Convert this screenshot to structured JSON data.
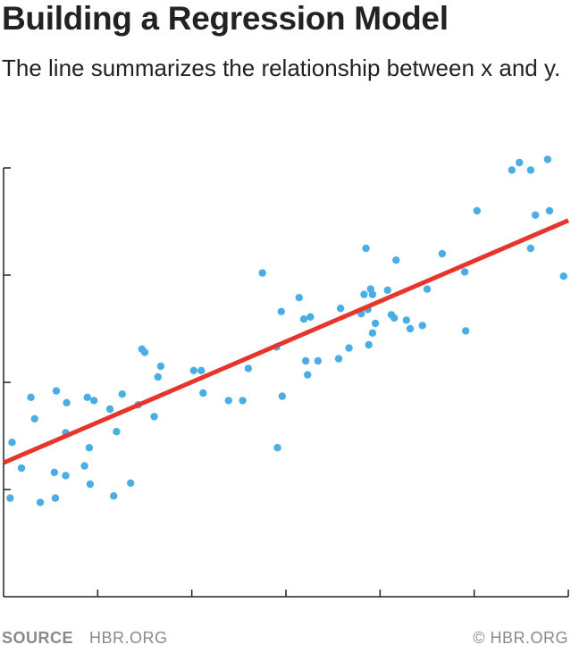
{
  "header": {
    "title": "Building a Regression Model",
    "subtitle": "The line summarizes the relationship between x and y."
  },
  "footer": {
    "source_label": "SOURCE",
    "source_value": "HBR.ORG",
    "copyright": "© HBR.ORG"
  },
  "colors": {
    "point": "#4aaee4",
    "line": "#e8352c",
    "axis": "#222222"
  },
  "chart_data": {
    "type": "scatter",
    "title": "Building a Regression Model",
    "subtitle": "The line summarizes the relationship between x and y.",
    "xlabel": "",
    "ylabel": "",
    "xlim": [
      0,
      6
    ],
    "ylim": [
      0,
      4
    ],
    "x_ticks": [
      1,
      2,
      3,
      4,
      5,
      6
    ],
    "y_ticks": [
      1,
      2,
      3,
      4
    ],
    "grid": false,
    "legend": "none",
    "points": [
      [
        0.07,
        0.92
      ],
      [
        0.09,
        1.44
      ],
      [
        0.19,
        1.2
      ],
      [
        0.29,
        1.86
      ],
      [
        0.33,
        1.66
      ],
      [
        0.39,
        0.88
      ],
      [
        0.54,
        1.16
      ],
      [
        0.55,
        0.92
      ],
      [
        0.56,
        1.92
      ],
      [
        0.66,
        1.53
      ],
      [
        0.66,
        1.13
      ],
      [
        0.67,
        1.81
      ],
      [
        0.86,
        1.22
      ],
      [
        0.89,
        1.86
      ],
      [
        0.91,
        1.39
      ],
      [
        0.92,
        1.05
      ],
      [
        0.96,
        1.83
      ],
      [
        1.13,
        1.75
      ],
      [
        1.17,
        0.94
      ],
      [
        1.2,
        1.54
      ],
      [
        1.26,
        1.89
      ],
      [
        1.35,
        1.06
      ],
      [
        1.43,
        1.79
      ],
      [
        1.47,
        2.31
      ],
      [
        1.5,
        2.28
      ],
      [
        1.6,
        1.68
      ],
      [
        1.64,
        2.05
      ],
      [
        1.67,
        2.15
      ],
      [
        2.02,
        2.11
      ],
      [
        2.1,
        2.11
      ],
      [
        2.12,
        1.9
      ],
      [
        2.39,
        1.83
      ],
      [
        2.54,
        1.83
      ],
      [
        2.6,
        2.13
      ],
      [
        2.75,
        3.02
      ],
      [
        2.9,
        2.33
      ],
      [
        2.91,
        1.39
      ],
      [
        2.95,
        2.66
      ],
      [
        2.96,
        1.87
      ],
      [
        3.14,
        2.79
      ],
      [
        3.19,
        2.59
      ],
      [
        3.21,
        2.2
      ],
      [
        3.23,
        2.07
      ],
      [
        3.26,
        2.61
      ],
      [
        3.34,
        2.2
      ],
      [
        3.56,
        2.22
      ],
      [
        3.58,
        2.69
      ],
      [
        3.67,
        2.32
      ],
      [
        3.8,
        2.64
      ],
      [
        3.83,
        2.82
      ],
      [
        3.85,
        3.25
      ],
      [
        3.87,
        2.68
      ],
      [
        3.88,
        2.35
      ],
      [
        3.9,
        2.87
      ],
      [
        3.92,
        2.82
      ],
      [
        3.92,
        2.46
      ],
      [
        3.95,
        2.55
      ],
      [
        4.08,
        2.86
      ],
      [
        4.12,
        2.63
      ],
      [
        4.15,
        2.6
      ],
      [
        4.17,
        3.14
      ],
      [
        4.28,
        2.58
      ],
      [
        4.32,
        2.5
      ],
      [
        4.45,
        2.53
      ],
      [
        4.5,
        2.87
      ],
      [
        4.66,
        3.2
      ],
      [
        4.9,
        3.03
      ],
      [
        4.91,
        2.48
      ],
      [
        5.03,
        3.6
      ],
      [
        5.4,
        3.98
      ],
      [
        5.48,
        4.05
      ],
      [
        5.6,
        3.98
      ],
      [
        5.6,
        3.25
      ],
      [
        5.65,
        3.56
      ],
      [
        5.78,
        4.08
      ],
      [
        5.8,
        3.6
      ],
      [
        5.95,
        2.99
      ]
    ],
    "fit_line": {
      "x": [
        0,
        6
      ],
      "y": [
        1.25,
        3.51
      ]
    }
  }
}
